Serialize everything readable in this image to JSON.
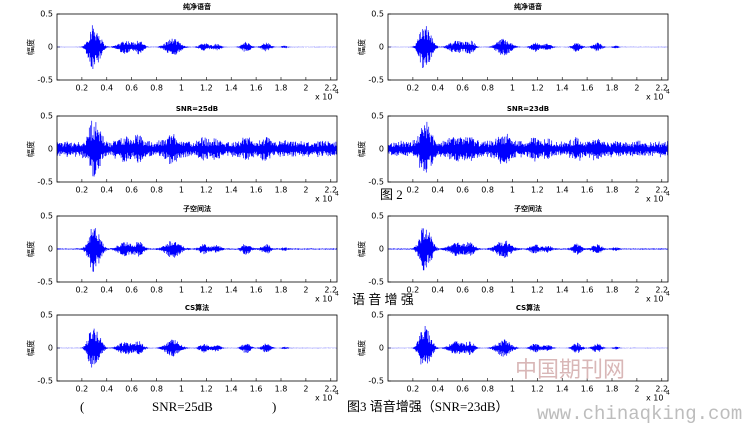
{
  "chart_data": [
    {
      "type": "waveform",
      "title": "纯净语音",
      "ylabel": "幅度",
      "xlim": [
        0,
        2.25
      ],
      "xticks": [
        0.2,
        0.4,
        0.6,
        0.8,
        1,
        1.2,
        1.4,
        1.6,
        1.8,
        2,
        2.2
      ],
      "ylim": [
        -0.5,
        0.5
      ],
      "yticks": [
        -0.5,
        0,
        0.5
      ],
      "x_multiplier": {
        "base": "x 10",
        "exponent": "4"
      },
      "color": "#0000ff"
    },
    {
      "type": "waveform",
      "title": "SNR=25dB",
      "ylabel": "幅度",
      "xlim": [
        0,
        2.25
      ],
      "xticks": [
        0.2,
        0.4,
        0.6,
        0.8,
        1,
        1.2,
        1.4,
        1.6,
        1.8,
        2,
        2.2
      ],
      "ylim": [
        -0.5,
        0.5
      ],
      "yticks": [
        -0.5,
        0,
        0.5
      ],
      "x_multiplier": {
        "base": "x 10",
        "exponent": "4"
      },
      "color": "#0000ff"
    },
    {
      "type": "waveform",
      "title": "子空间法",
      "ylabel": "幅度",
      "xlim": [
        0,
        2.25
      ],
      "xticks": [
        0.2,
        0.4,
        0.6,
        0.8,
        1,
        1.2,
        1.4,
        1.6,
        1.8,
        2,
        2.2
      ],
      "ylim": [
        -0.5,
        0.5
      ],
      "yticks": [
        -0.5,
        0,
        0.5
      ],
      "x_multiplier": {
        "base": "x 10",
        "exponent": "4"
      },
      "color": "#0000ff"
    },
    {
      "type": "waveform",
      "title": "CS算法",
      "ylabel": "幅度",
      "xlim": [
        0,
        2.25
      ],
      "xticks": [
        0.2,
        0.4,
        0.6,
        0.8,
        1,
        1.2,
        1.4,
        1.6,
        1.8,
        2,
        2.2
      ],
      "ylim": [
        -0.5,
        0.5
      ],
      "yticks": [
        -0.5,
        0,
        0.5
      ],
      "x_multiplier": {
        "base": "x 10",
        "exponent": "4"
      },
      "color": "#0000ff"
    },
    {
      "type": "waveform",
      "title": "纯净语音",
      "ylabel": "幅度",
      "xlim": [
        0,
        2.25
      ],
      "xticks": [
        0.2,
        0.4,
        0.6,
        0.8,
        1,
        1.2,
        1.4,
        1.6,
        1.8,
        2,
        2.2
      ],
      "ylim": [
        -0.5,
        0.5
      ],
      "yticks": [
        -0.5,
        0,
        0.5
      ],
      "x_multiplier": {
        "base": "x 10",
        "exponent": "4"
      },
      "color": "#0000ff"
    },
    {
      "type": "waveform",
      "title": "SNR=23dB",
      "ylabel": "幅度",
      "xlim": [
        0,
        2.25
      ],
      "xticks": [
        0.2,
        0.4,
        0.6,
        0.8,
        1,
        1.2,
        1.4,
        1.6,
        1.8,
        2,
        2.2
      ],
      "ylim": [
        -0.5,
        0.5
      ],
      "yticks": [
        -0.5,
        0,
        0.5
      ],
      "x_multiplier": {
        "base": "x 10",
        "exponent": "4"
      },
      "color": "#0000ff"
    },
    {
      "type": "waveform",
      "title": "子空间法",
      "ylabel": "幅度",
      "xlim": [
        0,
        2.25
      ],
      "xticks": [
        0.2,
        0.4,
        0.6,
        0.8,
        1,
        1.2,
        1.4,
        1.6,
        1.8,
        2,
        2.2
      ],
      "ylim": [
        -0.5,
        0.5
      ],
      "yticks": [
        -0.5,
        0,
        0.5
      ],
      "x_multiplier": {
        "base": "x 10",
        "exponent": "4"
      },
      "color": "#0000ff"
    },
    {
      "type": "waveform",
      "title": "CS算法",
      "ylabel": "幅度",
      "xlim": [
        0,
        2.25
      ],
      "xticks": [
        0.2,
        0.4,
        0.6,
        0.8,
        1,
        1.2,
        1.4,
        1.6,
        1.8,
        2,
        2.2
      ],
      "ylim": [
        -0.5,
        0.5
      ],
      "yticks": [
        -0.5,
        0,
        0.5
      ],
      "x_multiplier": {
        "base": "x 10",
        "exponent": "4"
      },
      "color": "#0000ff"
    }
  ],
  "captions": {
    "fig2": "图 2",
    "heading": "语 音 增 强",
    "left_open": "(",
    "left_snr": "SNR=25dB",
    "left_close": ")",
    "fig3": "图3 语音增强（SNR=23dB）"
  },
  "watermark": {
    "cn": "中国期刊网",
    "url": "www.chinaqking.com"
  }
}
